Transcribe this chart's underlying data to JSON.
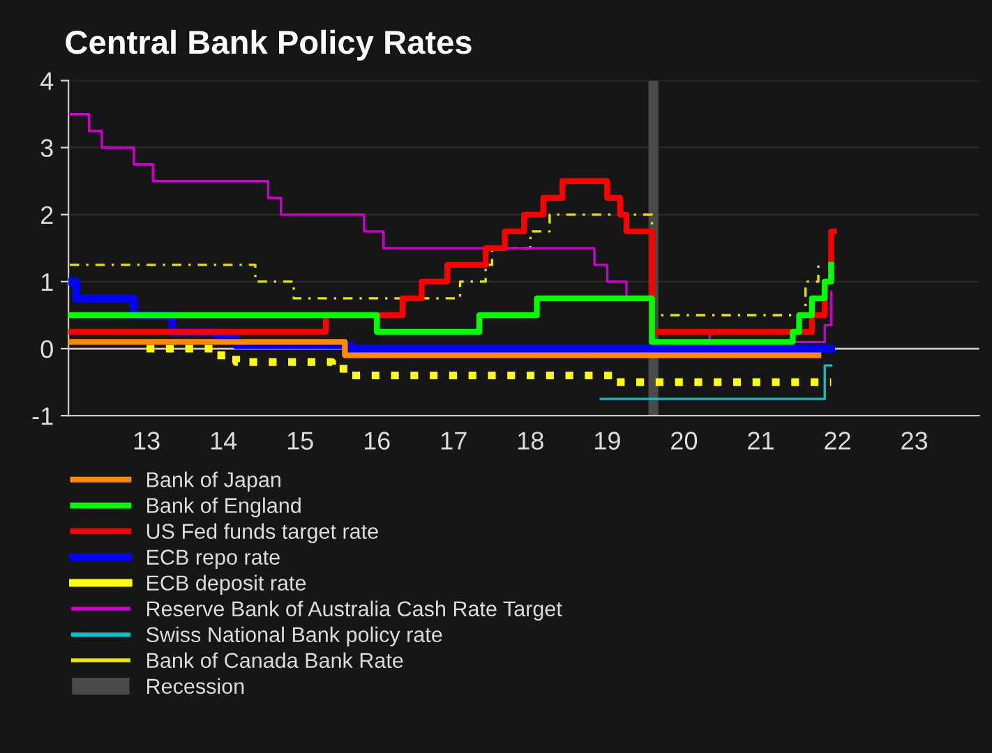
{
  "chart_data": {
    "type": "step",
    "title": "Central Bank Policy Rates",
    "xlim": [
      "2012-06-25",
      "2024-05-05"
    ],
    "ylim": [
      -1,
      4
    ],
    "xticks": [
      {
        "value": "2013-07-01",
        "label": "13"
      },
      {
        "value": "2014-07-01",
        "label": "14"
      },
      {
        "value": "2015-07-01",
        "label": "15"
      },
      {
        "value": "2016-07-01",
        "label": "16"
      },
      {
        "value": "2017-07-01",
        "label": "17"
      },
      {
        "value": "2018-07-01",
        "label": "18"
      },
      {
        "value": "2019-07-01",
        "label": "19"
      },
      {
        "value": "2020-07-01",
        "label": "20"
      },
      {
        "value": "2021-07-01",
        "label": "21"
      },
      {
        "value": "2022-07-01",
        "label": "22"
      },
      {
        "value": "2023-07-01",
        "label": "23"
      }
    ],
    "yticks": [
      -1,
      0,
      1,
      2,
      3,
      4
    ],
    "grid": "y",
    "legend": "bottom",
    "series": [
      {
        "name": "Bank of Japan",
        "color": "#ff8c00",
        "line_style": "solid",
        "x": [
          "2012-07",
          "2016-02",
          "2022-04"
        ],
        "values": [
          0.1,
          -0.1,
          -0.1
        ]
      },
      {
        "name": "Bank of England",
        "color": "#00ff00",
        "line_style": "solid",
        "x": [
          "2012-07",
          "2016-07",
          "2017-11",
          "2018-08",
          "2020-02",
          "2021-12",
          "2022-01",
          "2022-03",
          "2022-05",
          "2022-06"
        ],
        "values": [
          0.5,
          0.25,
          0.5,
          0.75,
          0.1,
          0.25,
          0.5,
          0.75,
          1.0,
          1.25
        ]
      },
      {
        "name": "US Fed funds target rate",
        "color": "#ff0000",
        "line_style": "solid",
        "x": [
          "2012-07",
          "2015-11",
          "2016-11",
          "2017-02",
          "2017-06",
          "2017-12",
          "2018-03",
          "2018-06",
          "2018-09",
          "2018-12",
          "2019-07",
          "2019-09",
          "2019-10",
          "2020-02",
          "2022-03",
          "2022-05",
          "2022-06",
          "2022-06-15"
        ],
        "values": [
          0.25,
          0.5,
          0.75,
          1.0,
          1.25,
          1.5,
          1.75,
          2.0,
          2.25,
          2.5,
          2.25,
          2.0,
          1.75,
          0.25,
          0.5,
          1.0,
          1.75,
          1.75
        ]
      },
      {
        "name": "ECB repo rate",
        "color": "#0000ff",
        "line_style": "solid",
        "x": [
          "2012-07",
          "2012-08",
          "2013-05",
          "2013-11",
          "2014-06",
          "2014-09",
          "2016-03",
          "2022-06"
        ],
        "values": [
          1.0,
          0.75,
          0.5,
          0.25,
          0.15,
          0.05,
          0.0,
          0.0
        ]
      },
      {
        "name": "ECB deposit rate",
        "color": "#ffff00",
        "line_style": "dotted",
        "x": [
          "2013-07",
          "2014-06",
          "2014-09",
          "2015-12",
          "2016-03",
          "2019-08",
          "2022-06"
        ],
        "values": [
          0.0,
          -0.1,
          -0.2,
          -0.3,
          -0.4,
          -0.5,
          -0.5
        ]
      },
      {
        "name": "Reserve Bank of Australia Cash Rate Target",
        "color": "#cc00cc",
        "line_style": "solid",
        "x": [
          "2012-07",
          "2012-10",
          "2012-12",
          "2013-05",
          "2013-08",
          "2015-02",
          "2015-04",
          "2016-05",
          "2016-08",
          "2019-05",
          "2019-07",
          "2019-10",
          "2020-02",
          "2020-11",
          "2022-05",
          "2022-06"
        ],
        "values": [
          3.5,
          3.25,
          3.0,
          2.75,
          2.5,
          2.25,
          2.0,
          1.75,
          1.5,
          1.25,
          1.0,
          0.75,
          0.25,
          0.1,
          0.35,
          0.85
        ]
      },
      {
        "name": "Swiss National Bank policy rate",
        "color": "#00c8c8",
        "line_style": "solid",
        "x": [
          "2019-06",
          "2022-05",
          "2022-06"
        ],
        "values": [
          -0.75,
          -0.25,
          -0.25
        ]
      },
      {
        "name": "Bank of Canada Bank Rate",
        "color": "#e6e600",
        "line_style": "dashed",
        "x": [
          "2012-07",
          "2014-12",
          "2015-06",
          "2017-08",
          "2017-12",
          "2018-01",
          "2018-07",
          "2018-10",
          "2020-02",
          "2022-02",
          "2022-04",
          "2022-04-15"
        ],
        "values": [
          1.25,
          1.0,
          0.75,
          1.0,
          1.25,
          1.5,
          1.75,
          2.0,
          0.5,
          1.0,
          1.25,
          1.25
        ]
      }
    ],
    "ref_lines": [
      {
        "axis": "y",
        "value": 0,
        "color": "#c8c8c8"
      }
    ],
    "bands": [
      {
        "axis": "x",
        "from": "2020-01-15",
        "to": "2020-03-01",
        "label": "Recession",
        "color": "#4a4a4a"
      }
    ]
  }
}
